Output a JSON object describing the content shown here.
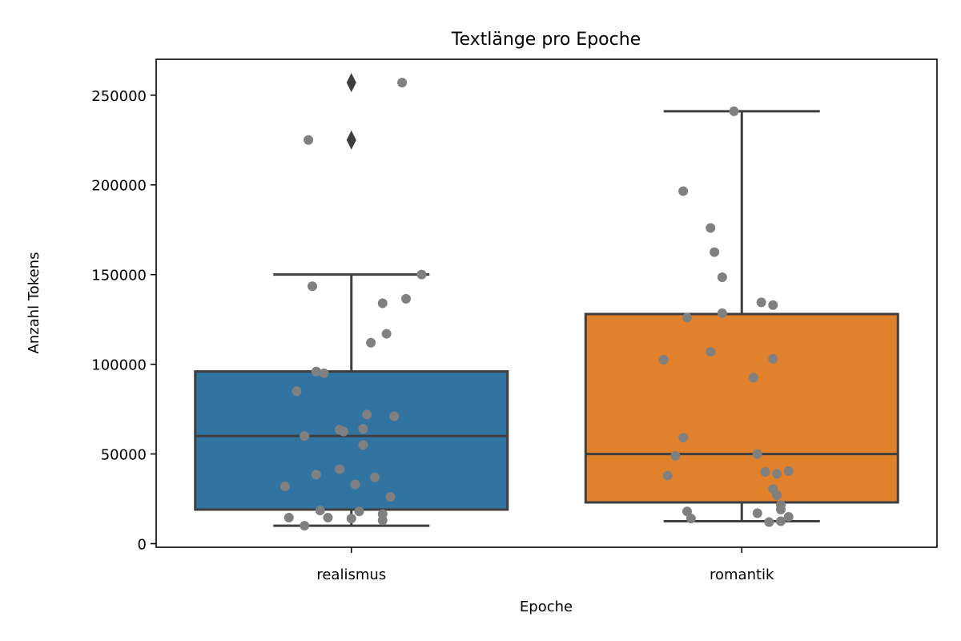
{
  "chart_data": {
    "type": "box",
    "title": "Textlänge pro Epoche",
    "xlabel": "Epoche",
    "ylabel": "Anzahl Tokens",
    "ylim": [
      -2000,
      270000
    ],
    "yticks": [
      0,
      50000,
      100000,
      150000,
      200000,
      250000
    ],
    "categories": [
      "realismus",
      "romantik"
    ],
    "colors": [
      "#3274a1",
      "#e1812c"
    ],
    "point_color": "#808080",
    "box_edge_color": "#3f3f3f",
    "boxes": [
      {
        "name": "realismus",
        "whisker_low": 10000,
        "q1": 19000,
        "median": 60000,
        "q3": 96000,
        "whisker_high": 150000,
        "outliers": [
          225000,
          257000
        ]
      },
      {
        "name": "romantik",
        "whisker_low": 12500,
        "q1": 23000,
        "median": 50000,
        "q3": 128000,
        "whisker_high": 241000,
        "outliers": []
      }
    ],
    "points": [
      [
        {
          "jitter": 0.13,
          "y": 257000
        },
        {
          "jitter": -0.11,
          "y": 225000
        },
        {
          "jitter": 0.18,
          "y": 150000
        },
        {
          "jitter": -0.1,
          "y": 143500
        },
        {
          "jitter": 0.14,
          "y": 136500
        },
        {
          "jitter": 0.08,
          "y": 134000
        },
        {
          "jitter": 0.09,
          "y": 117000
        },
        {
          "jitter": 0.05,
          "y": 112000
        },
        {
          "jitter": -0.09,
          "y": 96000
        },
        {
          "jitter": -0.07,
          "y": 95000
        },
        {
          "jitter": -0.14,
          "y": 85000
        },
        {
          "jitter": 0.04,
          "y": 72000
        },
        {
          "jitter": 0.11,
          "y": 71000
        },
        {
          "jitter": 0.03,
          "y": 64000
        },
        {
          "jitter": -0.03,
          "y": 63500
        },
        {
          "jitter": -0.02,
          "y": 62500
        },
        {
          "jitter": -0.12,
          "y": 60000
        },
        {
          "jitter": 0.03,
          "y": 55000
        },
        {
          "jitter": -0.03,
          "y": 41500
        },
        {
          "jitter": -0.09,
          "y": 38500
        },
        {
          "jitter": 0.06,
          "y": 37000
        },
        {
          "jitter": 0.01,
          "y": 33000
        },
        {
          "jitter": -0.17,
          "y": 32000
        },
        {
          "jitter": 0.1,
          "y": 26000
        },
        {
          "jitter": -0.08,
          "y": 18500
        },
        {
          "jitter": 0.02,
          "y": 18000
        },
        {
          "jitter": 0.08,
          "y": 16500
        },
        {
          "jitter": -0.16,
          "y": 14500
        },
        {
          "jitter": -0.06,
          "y": 14500
        },
        {
          "jitter": 0.0,
          "y": 14000
        },
        {
          "jitter": 0.08,
          "y": 13000
        },
        {
          "jitter": -0.12,
          "y": 10000
        }
      ],
      [
        {
          "jitter": -0.02,
          "y": 241000
        },
        {
          "jitter": -0.15,
          "y": 196500
        },
        {
          "jitter": -0.08,
          "y": 176000
        },
        {
          "jitter": -0.07,
          "y": 162500
        },
        {
          "jitter": -0.05,
          "y": 148500
        },
        {
          "jitter": 0.05,
          "y": 134500
        },
        {
          "jitter": 0.08,
          "y": 133000
        },
        {
          "jitter": -0.05,
          "y": 128500
        },
        {
          "jitter": -0.14,
          "y": 126000
        },
        {
          "jitter": -0.08,
          "y": 107000
        },
        {
          "jitter": 0.08,
          "y": 103000
        },
        {
          "jitter": -0.2,
          "y": 102500
        },
        {
          "jitter": 0.03,
          "y": 92500
        },
        {
          "jitter": -0.15,
          "y": 59000
        },
        {
          "jitter": 0.04,
          "y": 50000
        },
        {
          "jitter": -0.17,
          "y": 49000
        },
        {
          "jitter": 0.12,
          "y": 40500
        },
        {
          "jitter": 0.06,
          "y": 40000
        },
        {
          "jitter": 0.09,
          "y": 39000
        },
        {
          "jitter": -0.19,
          "y": 38000
        },
        {
          "jitter": 0.08,
          "y": 30500
        },
        {
          "jitter": 0.09,
          "y": 27000
        },
        {
          "jitter": 0.1,
          "y": 21500
        },
        {
          "jitter": 0.1,
          "y": 19000
        },
        {
          "jitter": -0.14,
          "y": 18000
        },
        {
          "jitter": 0.04,
          "y": 17000
        },
        {
          "jitter": 0.12,
          "y": 15000
        },
        {
          "jitter": -0.13,
          "y": 14000
        },
        {
          "jitter": 0.1,
          "y": 12500
        },
        {
          "jitter": 0.07,
          "y": 12000
        }
      ]
    ]
  }
}
